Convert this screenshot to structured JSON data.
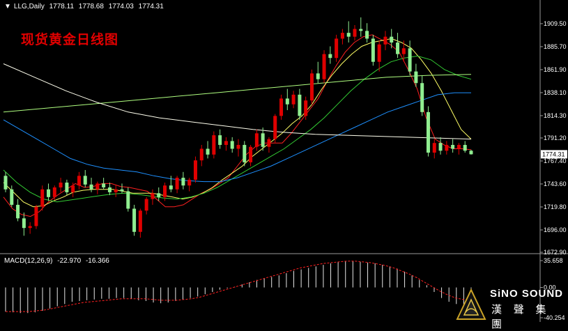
{
  "header": {
    "symbol": "LLG,Daily",
    "open": "1778.11",
    "high": "1778.68",
    "low": "1774.03",
    "close": "1774.31"
  },
  "title": "现货黄金日线图",
  "current_price_label": "1774.31",
  "macd": {
    "label": "MACD(12,26,9)",
    "main": "-22.970",
    "signal": "-16.366",
    "axis_ticks": [
      "35.658",
      "0.00",
      "-40.254"
    ]
  },
  "logo": {
    "text_en": "SiNO SOUND",
    "text_cn": "漢 聲 集 團"
  },
  "colors": {
    "background": "#000000",
    "bull": "#e00000",
    "bear": "#90ee90",
    "ma_red": "#ff2020",
    "ma_yellow": "#ffff66",
    "ma_green": "#33cc33",
    "ma_blue": "#1e90ff",
    "ma_lightgreen": "#b0ff80",
    "ma_white": "#ffffee",
    "grid": "#9a9a9a"
  },
  "chart_data": {
    "type": "candlestick",
    "title": "现货黄金日线图",
    "ylim": [
      1672.9,
      1921.0
    ],
    "y_ticks": [
      1909.5,
      1885.7,
      1861.9,
      1838.1,
      1814.3,
      1791.2,
      1767.4,
      1743.6,
      1719.8,
      1696.0,
      1672.9
    ],
    "y_tick_labels": [
      "1909.50",
      "1885.70",
      "1861.90",
      "1838.10",
      "1814.30",
      "1791.20",
      "1767.40",
      "1743.60",
      "1719.80",
      "1696.00",
      "1672.90"
    ],
    "candles": [
      [
        1752,
        1756,
        1735,
        1738
      ],
      [
        1738,
        1742,
        1720,
        1722
      ],
      [
        1722,
        1728,
        1705,
        1708
      ],
      [
        1708,
        1714,
        1690,
        1698
      ],
      [
        1698,
        1704,
        1692,
        1700
      ],
      [
        1700,
        1722,
        1697,
        1720
      ],
      [
        1720,
        1742,
        1716,
        1738
      ],
      [
        1738,
        1744,
        1726,
        1730
      ],
      [
        1730,
        1742,
        1727,
        1740
      ],
      [
        1740,
        1750,
        1735,
        1745
      ],
      [
        1745,
        1748,
        1732,
        1735
      ],
      [
        1735,
        1745,
        1730,
        1742
      ],
      [
        1742,
        1756,
        1738,
        1752
      ],
      [
        1752,
        1758,
        1740,
        1743
      ],
      [
        1743,
        1750,
        1735,
        1738
      ],
      [
        1738,
        1746,
        1733,
        1744
      ],
      [
        1744,
        1750,
        1738,
        1740
      ],
      [
        1740,
        1745,
        1732,
        1735
      ],
      [
        1735,
        1742,
        1730,
        1738
      ],
      [
        1738,
        1744,
        1734,
        1736
      ],
      [
        1736,
        1740,
        1715,
        1718
      ],
      [
        1718,
        1722,
        1690,
        1694
      ],
      [
        1694,
        1718,
        1688,
        1716
      ],
      [
        1716,
        1730,
        1712,
        1728
      ],
      [
        1728,
        1738,
        1722,
        1734
      ],
      [
        1734,
        1740,
        1726,
        1730
      ],
      [
        1730,
        1745,
        1726,
        1742
      ],
      [
        1742,
        1752,
        1735,
        1738
      ],
      [
        1738,
        1752,
        1734,
        1750
      ],
      [
        1750,
        1756,
        1738,
        1742
      ],
      [
        1742,
        1750,
        1736,
        1748
      ],
      [
        1748,
        1772,
        1745,
        1768
      ],
      [
        1768,
        1784,
        1762,
        1780
      ],
      [
        1780,
        1788,
        1770,
        1774
      ],
      [
        1774,
        1798,
        1770,
        1794
      ],
      [
        1794,
        1800,
        1780,
        1784
      ],
      [
        1784,
        1792,
        1778,
        1788
      ],
      [
        1788,
        1792,
        1776,
        1780
      ],
      [
        1780,
        1790,
        1772,
        1784
      ],
      [
        1784,
        1788,
        1762,
        1766
      ],
      [
        1766,
        1784,
        1762,
        1782
      ],
      [
        1782,
        1800,
        1778,
        1796
      ],
      [
        1796,
        1802,
        1778,
        1782
      ],
      [
        1782,
        1792,
        1776,
        1790
      ],
      [
        1790,
        1816,
        1786,
        1814
      ],
      [
        1814,
        1836,
        1810,
        1832
      ],
      [
        1832,
        1842,
        1820,
        1826
      ],
      [
        1826,
        1840,
        1822,
        1836
      ],
      [
        1836,
        1842,
        1810,
        1814
      ],
      [
        1814,
        1834,
        1810,
        1830
      ],
      [
        1830,
        1862,
        1826,
        1858
      ],
      [
        1858,
        1870,
        1848,
        1852
      ],
      [
        1852,
        1882,
        1848,
        1878
      ],
      [
        1878,
        1886,
        1868,
        1874
      ],
      [
        1874,
        1898,
        1870,
        1894
      ],
      [
        1894,
        1904,
        1888,
        1900
      ],
      [
        1900,
        1912,
        1890,
        1896
      ],
      [
        1896,
        1908,
        1892,
        1904
      ],
      [
        1904,
        1916,
        1896,
        1902
      ],
      [
        1902,
        1910,
        1890,
        1894
      ],
      [
        1894,
        1898,
        1866,
        1870
      ],
      [
        1870,
        1892,
        1860,
        1888
      ],
      [
        1888,
        1902,
        1882,
        1896
      ],
      [
        1896,
        1904,
        1884,
        1890
      ],
      [
        1890,
        1900,
        1874,
        1878
      ],
      [
        1878,
        1892,
        1870,
        1884
      ],
      [
        1884,
        1892,
        1856,
        1860
      ],
      [
        1860,
        1868,
        1844,
        1848
      ],
      [
        1848,
        1856,
        1814,
        1818
      ],
      [
        1818,
        1824,
        1772,
        1776
      ],
      [
        1776,
        1790,
        1770,
        1786
      ],
      [
        1786,
        1792,
        1774,
        1778
      ],
      [
        1778,
        1788,
        1774,
        1784
      ],
      [
        1784,
        1790,
        1776,
        1780
      ],
      [
        1780,
        1786,
        1774,
        1784
      ],
      [
        1784,
        1788,
        1776,
        1778
      ],
      [
        1778,
        1779,
        1774,
        1774.31
      ]
    ],
    "series": [
      {
        "values": [
          1730,
          1718,
          1712,
          1710,
          1715,
          1725,
          1732,
          1738,
          1744,
          1740,
          1741,
          1744,
          1744,
          1741,
          1740,
          1738,
          1736,
          1728,
          1720,
          1720,
          1722,
          1728,
          1734,
          1738,
          1744,
          1750,
          1762,
          1774,
          1782,
          1786,
          1786,
          1786,
          1796,
          1808,
          1820,
          1832,
          1850,
          1866,
          1880,
          1890,
          1896,
          1898,
          1893,
          1888,
          1880,
          1862,
          1842,
          1812,
          1790,
          1784,
          1780,
          1780,
          1779
        ]
      },
      {
        "values": [
          1745,
          1735,
          1725,
          1720,
          1721,
          1726,
          1730,
          1735,
          1737,
          1738,
          1738,
          1738,
          1736,
          1734,
          1734,
          1734,
          1732,
          1730,
          1728,
          1730,
          1734,
          1740,
          1748,
          1755,
          1762,
          1772,
          1780,
          1788,
          1796,
          1806,
          1814,
          1826,
          1842,
          1856,
          1868,
          1878,
          1886,
          1890,
          1892,
          1894,
          1890,
          1884,
          1872,
          1858,
          1840,
          1820,
          1800,
          1790
        ]
      },
      {
        "values": [
          1758,
          1745,
          1735,
          1728,
          1725,
          1727,
          1729,
          1731,
          1733,
          1734,
          1733,
          1731,
          1729,
          1728,
          1730,
          1734,
          1740,
          1748,
          1756,
          1764,
          1772,
          1780,
          1790,
          1800,
          1812,
          1826,
          1840,
          1852,
          1862,
          1870,
          1874,
          1876,
          1872,
          1862,
          1856,
          1852
        ]
      },
      {
        "values": [
          1810,
          1800,
          1790,
          1780,
          1770,
          1764,
          1760,
          1758,
          1756,
          1752,
          1749,
          1747,
          1746,
          1746,
          1750,
          1756,
          1762,
          1770,
          1778,
          1786,
          1794,
          1802,
          1810,
          1818,
          1824,
          1830,
          1836,
          1838,
          1838
        ]
      },
      {
        "values": [
          1818,
          1822,
          1826,
          1830,
          1834,
          1838,
          1842,
          1846,
          1850,
          1854,
          1856,
          1857
        ]
      },
      {
        "values": [
          1868,
          1854,
          1840,
          1828,
          1818,
          1812,
          1808,
          1804,
          1800,
          1797,
          1795,
          1794,
          1793,
          1792,
          1791,
          1790
        ]
      }
    ],
    "macd_hist": [
      -32,
      -33,
      -34,
      -34,
      -33,
      -31,
      -28,
      -25,
      -22,
      -19,
      -18,
      -17,
      -16,
      -15,
      -15,
      -14,
      -14,
      -15,
      -17,
      -18,
      -20,
      -21,
      -20,
      -18,
      -16,
      -14,
      -12,
      -9,
      -6,
      -3,
      -1,
      1,
      4,
      7,
      10,
      12,
      14,
      16,
      19,
      22,
      24,
      26,
      28,
      30,
      32,
      34,
      35,
      35,
      34,
      33,
      32,
      30,
      28,
      25,
      21,
      16,
      10,
      3,
      -6,
      -14,
      -19,
      -22,
      -23,
      -23
    ],
    "macd_signal": [
      -32,
      -32,
      -32,
      -32,
      -31,
      -30,
      -28,
      -26,
      -24,
      -22,
      -20,
      -19,
      -18,
      -17,
      -16,
      -15,
      -15,
      -15,
      -15,
      -16,
      -17,
      -17,
      -17,
      -16,
      -15,
      -13,
      -10,
      -7,
      -4,
      -1,
      2,
      5,
      8,
      11,
      14,
      17,
      20,
      23,
      26,
      28,
      30,
      32,
      33,
      34,
      35,
      35,
      34,
      33,
      31,
      29,
      26,
      22,
      18,
      13,
      7,
      1,
      -5,
      -10,
      -14,
      -16,
      -16.366
    ]
  }
}
